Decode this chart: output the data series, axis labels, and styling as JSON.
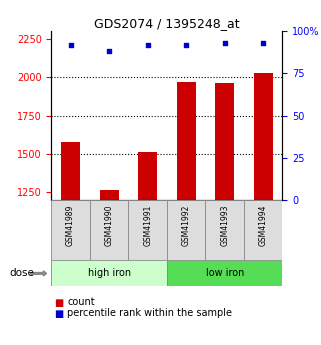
{
  "title": "GDS2074 / 1395248_at",
  "samples": [
    "GSM41989",
    "GSM41990",
    "GSM41991",
    "GSM41992",
    "GSM41993",
    "GSM41994"
  ],
  "bar_values": [
    1580,
    1265,
    1510,
    1970,
    1960,
    2030
  ],
  "scatter_values": [
    92,
    88,
    92,
    92,
    93,
    93
  ],
  "group1_label": "high iron",
  "group2_label": "low iron",
  "group1_color": "#ccffcc",
  "group2_color": "#55dd55",
  "bar_color": "#cc0000",
  "scatter_color": "#0000cc",
  "sample_box_color": "#dddddd",
  "ylim_left": [
    1200,
    2300
  ],
  "ylim_right": [
    0,
    100
  ],
  "yticks_left": [
    1250,
    1500,
    1750,
    2000,
    2250
  ],
  "yticks_right": [
    0,
    25,
    50,
    75,
    100
  ],
  "ytick_right_labels": [
    "0",
    "25",
    "50",
    "75",
    "100%"
  ],
  "grid_values": [
    1500,
    1750,
    2000
  ],
  "dose_label": "dose",
  "legend_count": "count",
  "legend_pct": "percentile rank within the sample"
}
